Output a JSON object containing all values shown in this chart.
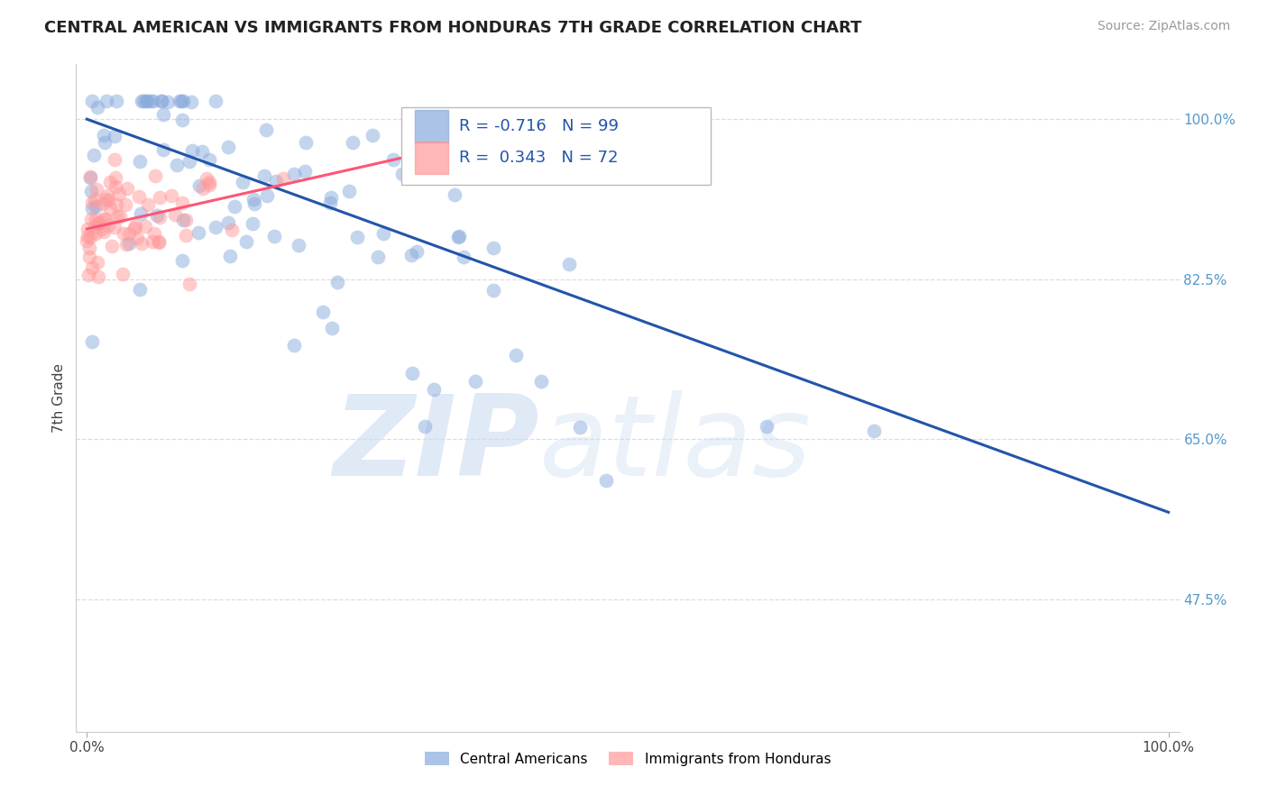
{
  "title": "CENTRAL AMERICAN VS IMMIGRANTS FROM HONDURAS 7TH GRADE CORRELATION CHART",
  "source": "Source: ZipAtlas.com",
  "ylabel": "7th Grade",
  "xlim": [
    0.0,
    1.0
  ],
  "ylim": [
    0.33,
    1.06
  ],
  "blue_R": -0.716,
  "blue_N": 99,
  "pink_R": 0.343,
  "pink_N": 72,
  "blue_color": "#88AADD",
  "pink_color": "#FF9999",
  "blue_line_color": "#2255AA",
  "pink_line_color": "#FF5577",
  "watermark": "ZIPatlas",
  "legend_blue": "Central Americans",
  "legend_pink": "Immigrants from Honduras",
  "grid_color": "#DDDDDD",
  "background_color": "#FFFFFF",
  "ytick_color": "#5599CC",
  "blue_trend_x0": 0.0,
  "blue_trend_y0": 1.0,
  "blue_trend_x1": 1.0,
  "blue_trend_y1": 0.57,
  "pink_trend_x0": 0.0,
  "pink_trend_y0": 0.88,
  "pink_trend_x1": 0.3,
  "pink_trend_y1": 0.96
}
